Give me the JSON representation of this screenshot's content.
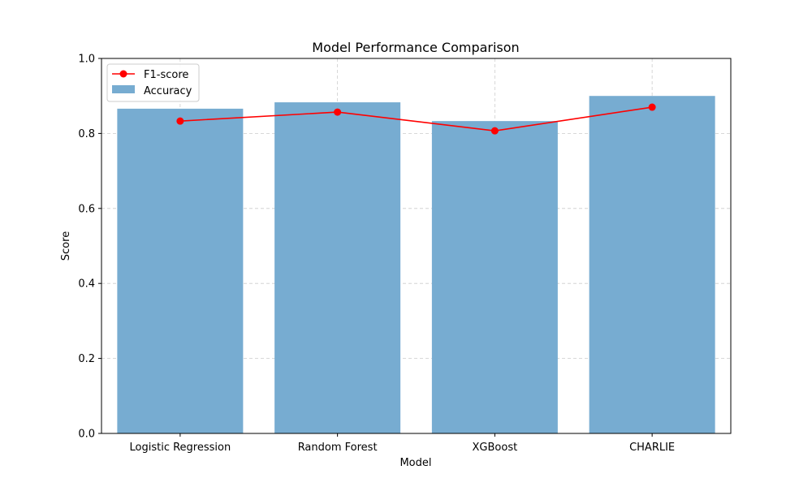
{
  "chart_data": {
    "type": "bar",
    "title": "Model Performance Comparison",
    "xlabel": "Model",
    "ylabel": "Score",
    "ylim": [
      0,
      1.0
    ],
    "yticks": [
      "0.0",
      "0.2",
      "0.4",
      "0.6",
      "0.8",
      "1.0"
    ],
    "ytick_values": [
      0,
      0.2,
      0.4,
      0.6,
      0.8,
      1.0
    ],
    "categories": [
      "Logistic Regression",
      "Random Forest",
      "XGBoost",
      "CHARLIE"
    ],
    "grid": true,
    "legend_position": "top-left",
    "series": [
      {
        "name": "Accuracy",
        "kind": "bar",
        "color": "#77acd1",
        "values": [
          0.866,
          0.883,
          0.833,
          0.9
        ]
      },
      {
        "name": "F1-score",
        "kind": "line",
        "color": "#ff0000",
        "values": [
          0.833,
          0.857,
          0.807,
          0.87
        ]
      }
    ]
  }
}
